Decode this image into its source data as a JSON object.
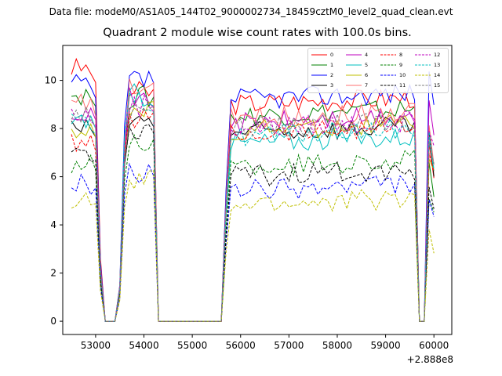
{
  "chart_data": {
    "type": "line",
    "suptitle": "Data file: modeM0/AS1A05_144T02_9000002734_18459cztM0_level2_quad_clean.evt",
    "title": "Quadrant 2 module wise count rates with 100.0s bins.",
    "xlabel": "",
    "ylabel": "",
    "x_offset_label": "+2.888e8",
    "xlim": [
      52320,
      60370
    ],
    "ylim": [
      -0.55,
      11.45
    ],
    "xticks": [
      53000,
      54000,
      55000,
      56000,
      57000,
      58000,
      59000,
      60000
    ],
    "yticks": [
      0,
      2,
      4,
      6,
      8,
      10
    ],
    "legend_position": "top-right",
    "bin_seconds": 100,
    "x_range": [
      52500,
      60000
    ],
    "segments": [
      {
        "start": 52500,
        "end": 53000
      },
      {
        "start": 53600,
        "end": 54200
      },
      {
        "start": 55700,
        "end": 59600
      },
      {
        "start": 59800,
        "end": 60000
      }
    ],
    "zero_intervals": [
      {
        "start": 53200,
        "end": 53400
      },
      {
        "start": 54300,
        "end": 55600
      },
      {
        "start": 59700,
        "end": 59700
      }
    ],
    "series": [
      {
        "name": "0",
        "color": "#ff0000",
        "dash": "solid",
        "levels": [
          10.5,
          9.5,
          9.0,
          5.8
        ]
      },
      {
        "name": "1",
        "color": "#008000",
        "dash": "solid",
        "levels": [
          9.4,
          9.3,
          8.5,
          5.4
        ]
      },
      {
        "name": "2",
        "color": "#0000ff",
        "dash": "solid",
        "levels": [
          9.8,
          10.0,
          9.2,
          8.8
        ]
      },
      {
        "name": "3",
        "color": "#000000",
        "dash": "solid",
        "levels": [
          8.0,
          8.3,
          7.8,
          6.2
        ]
      },
      {
        "name": "4",
        "color": "#bf00bf",
        "dash": "solid",
        "levels": [
          8.8,
          9.2,
          8.2,
          7.5
        ]
      },
      {
        "name": "5",
        "color": "#00bfbf",
        "dash": "solid",
        "levels": [
          8.4,
          9.4,
          7.4,
          6.4
        ]
      },
      {
        "name": "6",
        "color": "#bfbf00",
        "dash": "solid",
        "levels": [
          8.0,
          8.7,
          7.9,
          6.0
        ]
      },
      {
        "name": "7",
        "color": "#ff7070",
        "dash": "solid",
        "levels": [
          9.0,
          9.6,
          8.4,
          6.6
        ]
      },
      {
        "name": "8",
        "color": "#ff0000",
        "dash": "dashed",
        "levels": [
          7.4,
          8.5,
          7.8,
          5.9
        ]
      },
      {
        "name": "9",
        "color": "#008000",
        "dash": "dashed",
        "levels": [
          6.5,
          7.5,
          6.4,
          4.6
        ]
      },
      {
        "name": "10",
        "color": "#0000ff",
        "dash": "dashed",
        "levels": [
          5.7,
          6.1,
          5.4,
          4.0
        ]
      },
      {
        "name": "11",
        "color": "#000000",
        "dash": "dashed",
        "levels": [
          7.0,
          8.0,
          6.0,
          4.7
        ]
      },
      {
        "name": "12",
        "color": "#bf00bf",
        "dash": "dashed",
        "levels": [
          8.6,
          9.0,
          8.0,
          6.9
        ]
      },
      {
        "name": "13",
        "color": "#00bfbf",
        "dash": "dashed",
        "levels": [
          8.2,
          9.1,
          7.7,
          6.3
        ]
      },
      {
        "name": "14",
        "color": "#bfbf00",
        "dash": "dashed",
        "levels": [
          5.0,
          5.8,
          4.8,
          3.2
        ]
      },
      {
        "name": "15",
        "color": "#808080",
        "dash": "dashed",
        "levels": [
          8.5,
          8.6,
          8.0,
          6.5
        ]
      }
    ]
  }
}
